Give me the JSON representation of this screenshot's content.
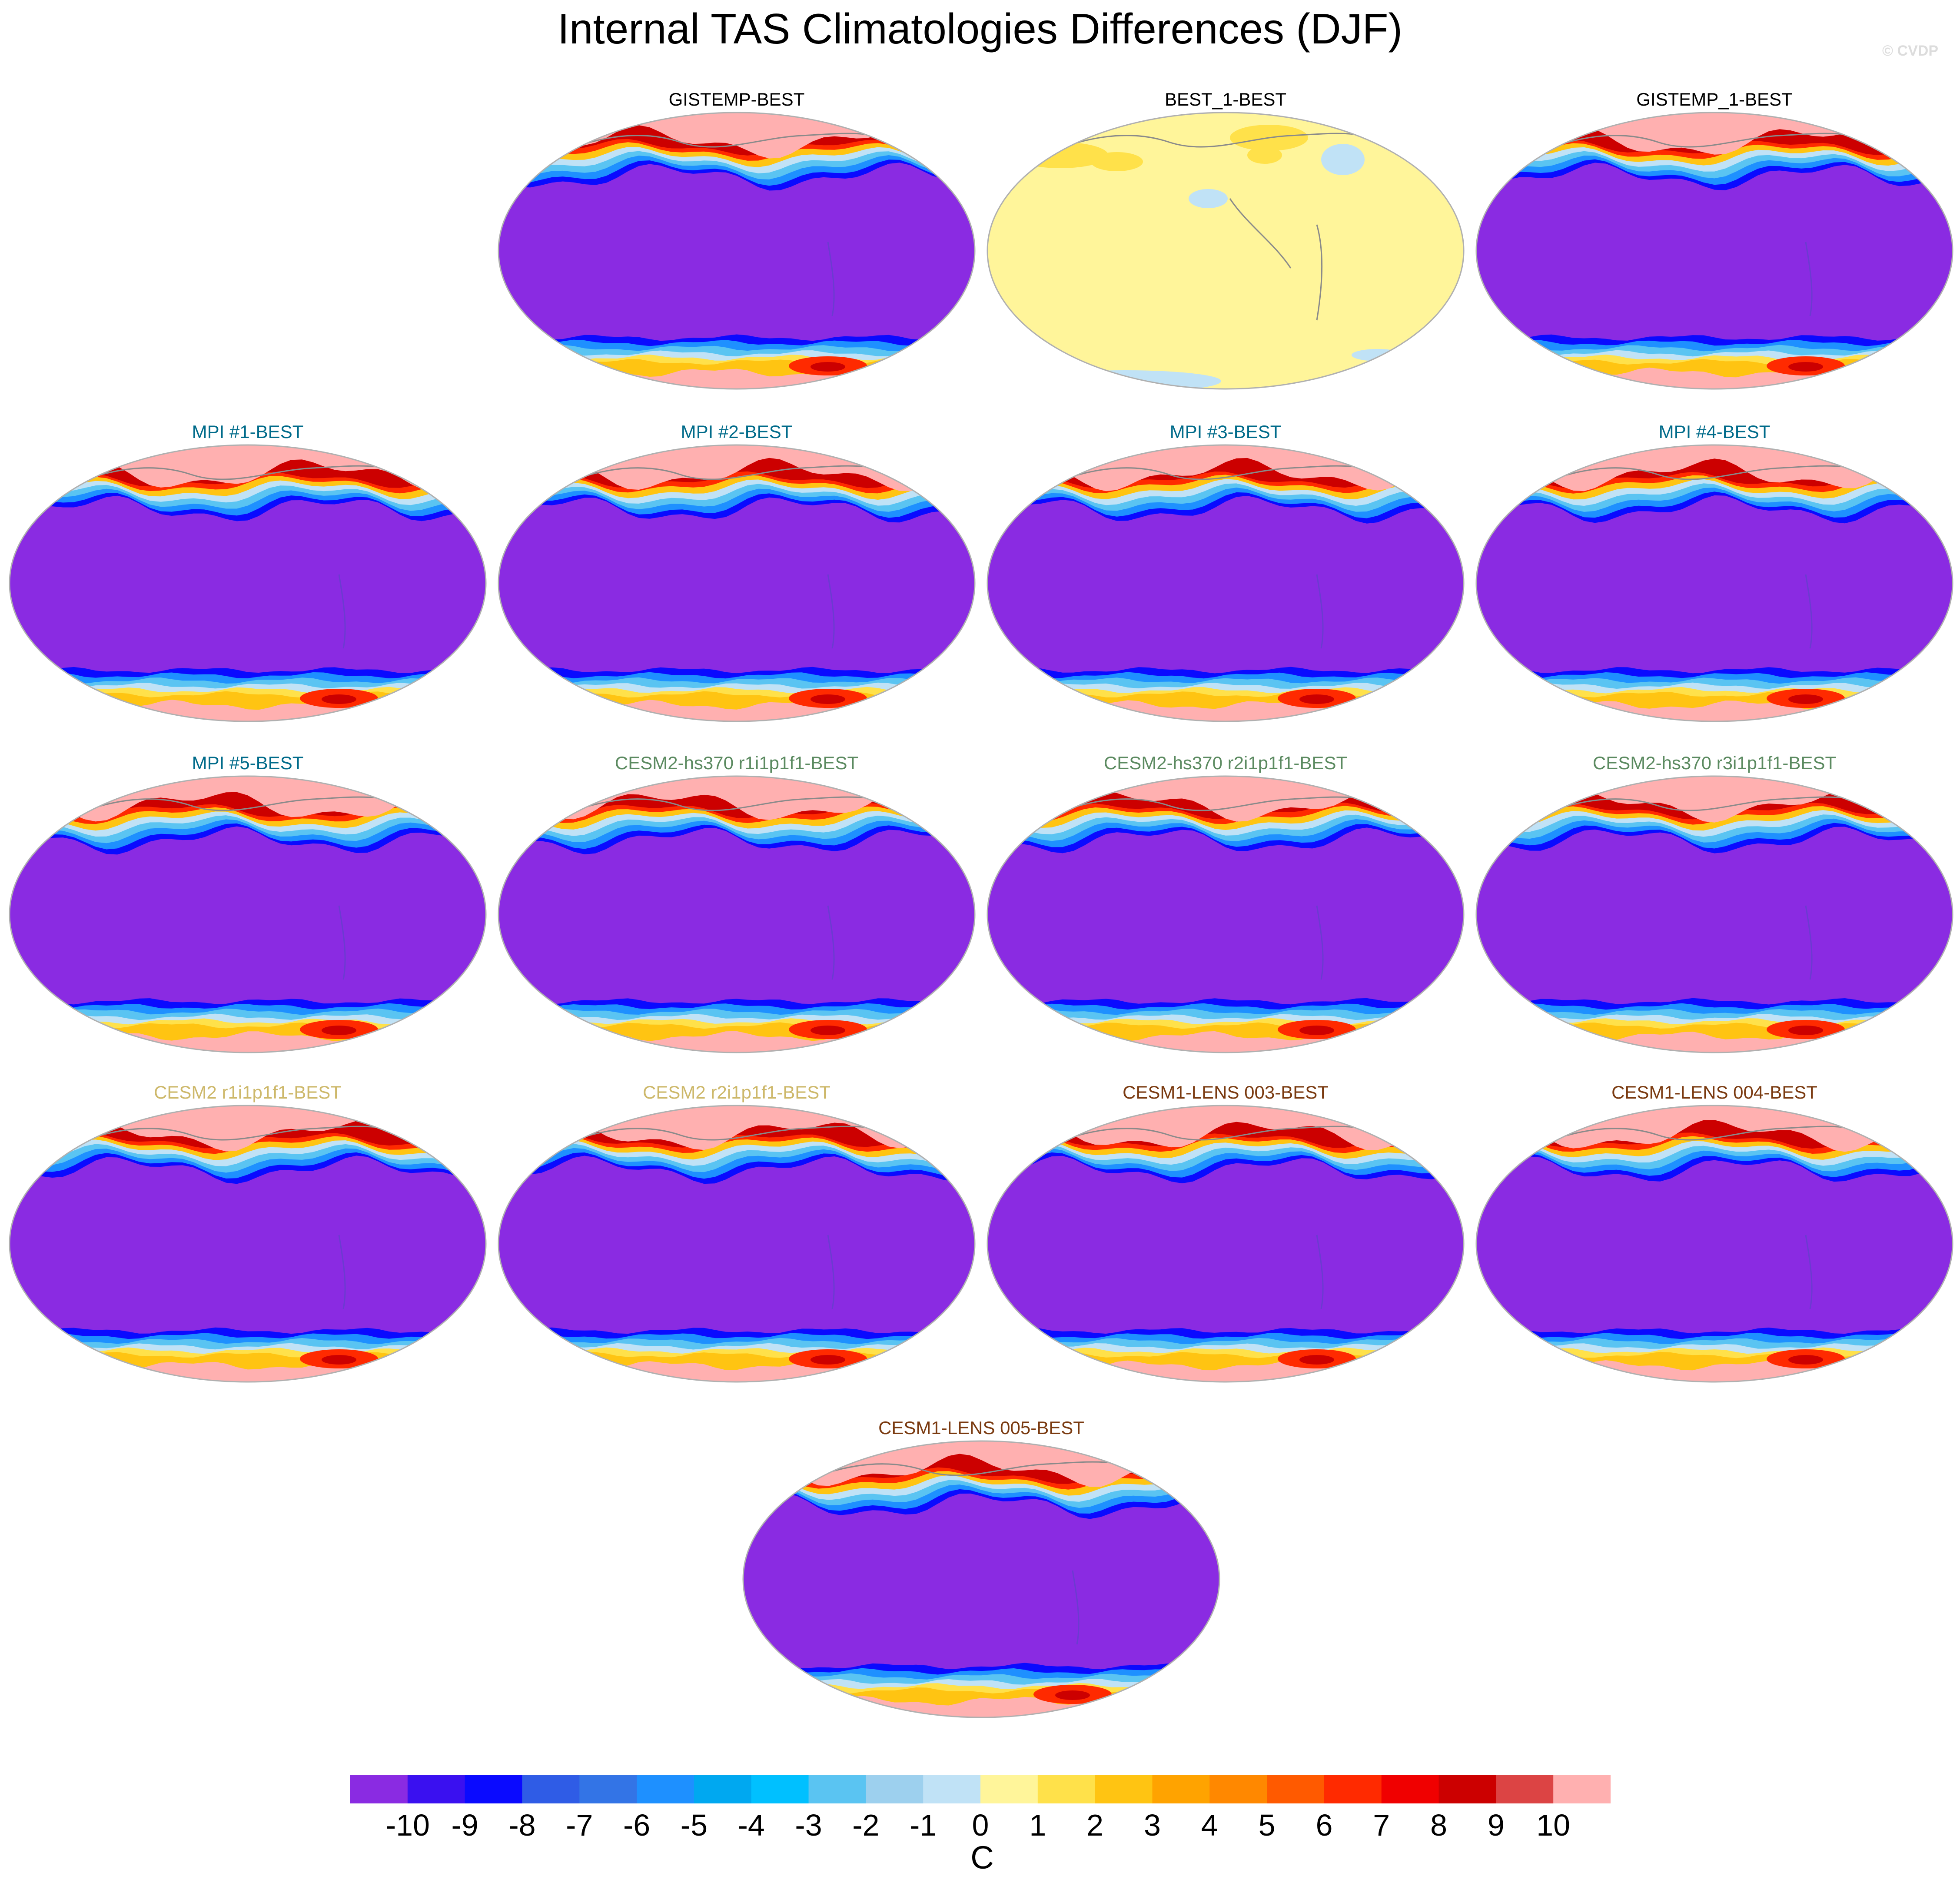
{
  "title": "Internal TAS Climatologies Differences (DJF)",
  "copyright": "© CVDP",
  "colorbar": {
    "units": "C",
    "tick_labels": [
      "-10",
      "-9",
      "-8",
      "-7",
      "-6",
      "-5",
      "-4",
      "-3",
      "-2",
      "-1",
      "0",
      "1",
      "2",
      "3",
      "4",
      "5",
      "6",
      "7",
      "8",
      "9",
      "10"
    ],
    "colors": [
      "#8a2be2",
      "#3a10f0",
      "#0a0aff",
      "#2f5ce6",
      "#3374e6",
      "#1e90ff",
      "#00a8f0",
      "#00c0ff",
      "#5ac4f2",
      "#9dd0ee",
      "#c0e2f6",
      "#fff59a",
      "#ffe14a",
      "#ffc412",
      "#ffa300",
      "#ff8800",
      "#ff5a00",
      "#ff2a00",
      "#f00000",
      "#cc0000",
      "#dc4444",
      "#ffb0b0"
    ]
  },
  "chart_data": {
    "type": "heatmap",
    "description_type": "global map panel grid",
    "variable": "TAS",
    "season": "DJF",
    "units": "C",
    "contour_levels": [
      -10,
      -9,
      -8,
      -7,
      -6,
      -5,
      -4,
      -3,
      -2,
      -1,
      0,
      1,
      2,
      3,
      4,
      5,
      6,
      7,
      8,
      9,
      10
    ],
    "panels": [
      {
        "title": "GISTEMP-BEST",
        "title_color": "#000000",
        "pattern": "large"
      },
      {
        "title": "BEST_1-BEST",
        "title_color": "#000000",
        "pattern": "small"
      },
      {
        "title": "GISTEMP_1-BEST",
        "title_color": "#000000",
        "pattern": "large"
      },
      {
        "title": "MPI #1-BEST",
        "title_color": "#006b8a",
        "pattern": "large"
      },
      {
        "title": "MPI #2-BEST",
        "title_color": "#006b8a",
        "pattern": "large"
      },
      {
        "title": "MPI #3-BEST",
        "title_color": "#006b8a",
        "pattern": "large"
      },
      {
        "title": "MPI #4-BEST",
        "title_color": "#006b8a",
        "pattern": "large"
      },
      {
        "title": "MPI #5-BEST",
        "title_color": "#006b8a",
        "pattern": "large"
      },
      {
        "title": "CESM2-hs370 r1i1p1f1-BEST",
        "title_color": "#5b8a60",
        "pattern": "large"
      },
      {
        "title": "CESM2-hs370 r2i1p1f1-BEST",
        "title_color": "#5b8a60",
        "pattern": "large"
      },
      {
        "title": "CESM2-hs370 r3i1p1f1-BEST",
        "title_color": "#5b8a60",
        "pattern": "large"
      },
      {
        "title": "CESM2 r1i1p1f1-BEST",
        "title_color": "#cdb86a",
        "pattern": "large"
      },
      {
        "title": "CESM2 r2i1p1f1-BEST",
        "title_color": "#cdb86a",
        "pattern": "large"
      },
      {
        "title": "CESM1-LENS 003-BEST",
        "title_color": "#7a3a10",
        "pattern": "large"
      },
      {
        "title": "CESM1-LENS 004-BEST",
        "title_color": "#7a3a10",
        "pattern": "large"
      },
      {
        "title": "CESM1-LENS 005-BEST",
        "title_color": "#7a3a10",
        "pattern": "large"
      }
    ]
  }
}
